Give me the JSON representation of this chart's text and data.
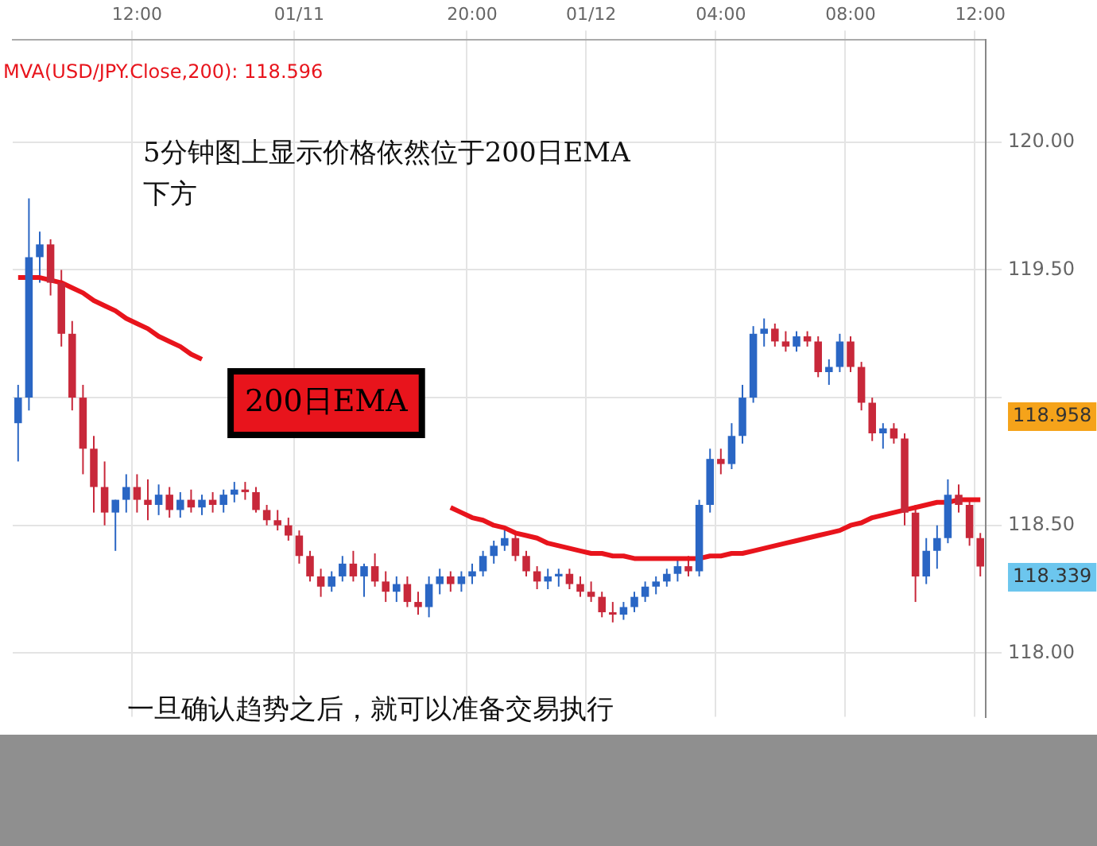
{
  "chart_data": {
    "type": "candlestick",
    "categories": [
      null,
      null,
      null,
      null,
      null,
      null,
      null,
      null,
      null,
      null,
      null,
      "12:00",
      null,
      null,
      null,
      null,
      null,
      null,
      null,
      null,
      null,
      null,
      null,
      null,
      null,
      null,
      "01/11",
      null,
      null,
      null,
      null,
      null,
      null,
      null,
      null,
      null,
      null,
      null,
      null,
      null,
      null,
      null,
      "20:00",
      null,
      null,
      null,
      null,
      null,
      null,
      null,
      null,
      null,
      null,
      "01/12",
      null,
      null,
      null,
      null,
      null,
      null,
      null,
      null,
      null,
      null,
      null,
      "04:00",
      null,
      null,
      null,
      null,
      null,
      null,
      null,
      null,
      null,
      null,
      null,
      "08:00",
      null,
      null,
      null,
      null,
      null,
      null,
      null,
      null,
      null,
      null,
      null,
      "12:00"
    ],
    "ohlc": [
      [
        118.9,
        119.05,
        118.75,
        119.0
      ],
      [
        119.0,
        119.78,
        118.95,
        119.55
      ],
      [
        119.55,
        119.65,
        119.45,
        119.6
      ],
      [
        119.6,
        119.62,
        119.4,
        119.45
      ],
      [
        119.45,
        119.5,
        119.2,
        119.25
      ],
      [
        119.25,
        119.3,
        118.95,
        119.0
      ],
      [
        119.0,
        119.05,
        118.7,
        118.8
      ],
      [
        118.8,
        118.85,
        118.55,
        118.65
      ],
      [
        118.65,
        118.75,
        118.5,
        118.55
      ],
      [
        118.55,
        118.6,
        118.4,
        118.6
      ],
      [
        118.6,
        118.7,
        118.55,
        118.65
      ],
      [
        118.65,
        118.7,
        118.55,
        118.6
      ],
      [
        118.6,
        118.68,
        118.52,
        118.58
      ],
      [
        118.58,
        118.66,
        118.54,
        118.62
      ],
      [
        118.62,
        118.65,
        118.53,
        118.56
      ],
      [
        118.56,
        118.63,
        118.53,
        118.6
      ],
      [
        118.6,
        118.64,
        118.55,
        118.57
      ],
      [
        118.57,
        118.62,
        118.54,
        118.6
      ],
      [
        118.6,
        118.63,
        118.55,
        118.58
      ],
      [
        118.58,
        118.64,
        118.55,
        118.62
      ],
      [
        118.62,
        118.67,
        118.59,
        118.64
      ],
      [
        118.64,
        118.67,
        118.6,
        118.63
      ],
      [
        118.63,
        118.65,
        118.55,
        118.56
      ],
      [
        118.56,
        118.58,
        118.5,
        118.52
      ],
      [
        118.52,
        118.56,
        118.48,
        118.5
      ],
      [
        118.5,
        118.53,
        118.44,
        118.46
      ],
      [
        118.46,
        118.48,
        118.35,
        118.38
      ],
      [
        118.38,
        118.4,
        118.28,
        118.3
      ],
      [
        118.3,
        118.33,
        118.22,
        118.26
      ],
      [
        118.26,
        118.32,
        118.24,
        118.3
      ],
      [
        118.3,
        118.38,
        118.28,
        118.35
      ],
      [
        118.35,
        118.4,
        118.28,
        118.3
      ],
      [
        118.3,
        118.35,
        118.22,
        118.34
      ],
      [
        118.34,
        118.39,
        118.26,
        118.28
      ],
      [
        118.28,
        118.32,
        118.2,
        118.24
      ],
      [
        118.24,
        118.3,
        118.2,
        118.27
      ],
      [
        118.27,
        118.3,
        118.18,
        118.2
      ],
      [
        118.2,
        118.24,
        118.15,
        118.18
      ],
      [
        118.18,
        118.3,
        118.14,
        118.27
      ],
      [
        118.27,
        118.33,
        118.23,
        118.3
      ],
      [
        118.3,
        118.32,
        118.24,
        118.27
      ],
      [
        118.27,
        118.32,
        118.24,
        118.3
      ],
      [
        118.3,
        118.35,
        118.27,
        118.32
      ],
      [
        118.32,
        118.4,
        118.3,
        118.38
      ],
      [
        118.38,
        118.44,
        118.35,
        118.42
      ],
      [
        118.42,
        118.49,
        118.4,
        118.45
      ],
      [
        118.45,
        118.47,
        118.36,
        118.38
      ],
      [
        118.38,
        118.4,
        118.3,
        118.32
      ],
      [
        118.32,
        118.34,
        118.25,
        118.28
      ],
      [
        118.28,
        118.33,
        118.25,
        118.3
      ],
      [
        118.3,
        118.33,
        118.26,
        118.31
      ],
      [
        118.31,
        118.33,
        118.25,
        118.27
      ],
      [
        118.27,
        118.3,
        118.22,
        118.24
      ],
      [
        118.24,
        118.28,
        118.2,
        118.22
      ],
      [
        118.22,
        118.24,
        118.14,
        118.16
      ],
      [
        118.16,
        118.2,
        118.12,
        118.15
      ],
      [
        118.15,
        118.2,
        118.13,
        118.18
      ],
      [
        118.18,
        118.24,
        118.16,
        118.22
      ],
      [
        118.22,
        118.28,
        118.2,
        118.26
      ],
      [
        118.26,
        118.3,
        118.23,
        118.28
      ],
      [
        118.28,
        118.33,
        118.26,
        118.31
      ],
      [
        118.31,
        118.37,
        118.28,
        118.34
      ],
      [
        118.34,
        118.38,
        118.3,
        118.32
      ],
      [
        118.32,
        118.6,
        118.3,
        118.58
      ],
      [
        118.58,
        118.8,
        118.55,
        118.76
      ],
      [
        118.76,
        118.8,
        118.7,
        118.74
      ],
      [
        118.74,
        118.9,
        118.72,
        118.85
      ],
      [
        118.85,
        119.05,
        118.82,
        119.0
      ],
      [
        119.0,
        119.28,
        118.98,
        119.25
      ],
      [
        119.25,
        119.31,
        119.2,
        119.27
      ],
      [
        119.27,
        119.29,
        119.2,
        119.22
      ],
      [
        119.22,
        119.26,
        119.18,
        119.2
      ],
      [
        119.2,
        119.26,
        119.18,
        119.24
      ],
      [
        119.24,
        119.26,
        119.2,
        119.22
      ],
      [
        119.22,
        119.24,
        119.08,
        119.1
      ],
      [
        119.1,
        119.15,
        119.05,
        119.12
      ],
      [
        119.12,
        119.25,
        119.1,
        119.22
      ],
      [
        119.22,
        119.24,
        119.1,
        119.12
      ],
      [
        119.12,
        119.14,
        118.95,
        118.98
      ],
      [
        118.98,
        119.0,
        118.83,
        118.86
      ],
      [
        118.86,
        118.9,
        118.8,
        118.88
      ],
      [
        118.88,
        118.9,
        118.82,
        118.84
      ],
      [
        118.84,
        118.86,
        118.5,
        118.55
      ],
      [
        118.55,
        118.58,
        118.2,
        118.3
      ],
      [
        118.3,
        118.45,
        118.27,
        118.4
      ],
      [
        118.4,
        118.5,
        118.33,
        118.45
      ],
      [
        118.45,
        118.68,
        118.43,
        118.62
      ],
      [
        118.62,
        118.66,
        118.55,
        118.58
      ],
      [
        118.58,
        118.6,
        118.42,
        118.45
      ],
      [
        118.45,
        118.47,
        118.3,
        118.339
      ]
    ],
    "series": [
      {
        "type": "line",
        "name": "200日EMA",
        "color": "#e8141c",
        "values": [
          119.47,
          119.47,
          119.47,
          119.46,
          119.45,
          119.43,
          119.41,
          119.38,
          119.36,
          119.34,
          119.31,
          119.29,
          119.27,
          119.24,
          119.22,
          119.2,
          119.17,
          119.15,
          null,
          null,
          null,
          null,
          null,
          null,
          null,
          null,
          null,
          null,
          null,
          null,
          null,
          null,
          null,
          null,
          null,
          null,
          null,
          null,
          null,
          null,
          118.57,
          118.55,
          118.53,
          118.52,
          118.5,
          118.49,
          118.47,
          118.46,
          118.45,
          118.43,
          118.42,
          118.41,
          118.4,
          118.39,
          118.39,
          118.38,
          118.38,
          118.37,
          118.37,
          118.37,
          118.37,
          118.37,
          118.37,
          118.37,
          118.38,
          118.38,
          118.39,
          118.39,
          118.4,
          118.41,
          118.42,
          118.43,
          118.44,
          118.45,
          118.46,
          118.47,
          118.48,
          118.5,
          118.51,
          118.53,
          118.54,
          118.55,
          118.56,
          118.57,
          118.58,
          118.59,
          118.59,
          118.6,
          118.6,
          118.6
        ]
      }
    ],
    "ylim": [
      117.75,
      120.4
    ],
    "yticks": [
      {
        "value": 118,
        "label": "118.00"
      },
      {
        "value": 118.5,
        "label": "118.50"
      },
      {
        "value": 119,
        "label": null
      },
      {
        "value": 119.5,
        "label": "119.50"
      },
      {
        "value": 120,
        "label": "120.00"
      }
    ],
    "annotations": [
      "MVA(USD/JPY.Close,200): 118.596",
      "5分钟图上显示价格依然位于200日EMA\n下方",
      "一旦确认趋势之后，就可以准备交易执行",
      "118.958",
      "118.339"
    ],
    "grid": true,
    "legend": false
  }
}
